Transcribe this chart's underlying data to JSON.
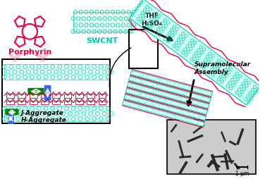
{
  "title": "",
  "background_color": "#ffffff",
  "porphyrin_label": "Porphyrin",
  "porphyrin_color": "#e8003c",
  "swcnt_label": "SWCNT",
  "swcnt_color": "#00ccaa",
  "reagents_label": "THF\nH₂SO₄",
  "supramolecular_label": "Supramolecular\nAssembly",
  "j_aggregate_label": "J-Aggregate",
  "h_aggregate_label": "H-Aggregate",
  "j_aggregate_color": "#008800",
  "h_aggregate_color": "#3366ff",
  "scale_bar_label": "1 μm",
  "box_color": "#222222"
}
